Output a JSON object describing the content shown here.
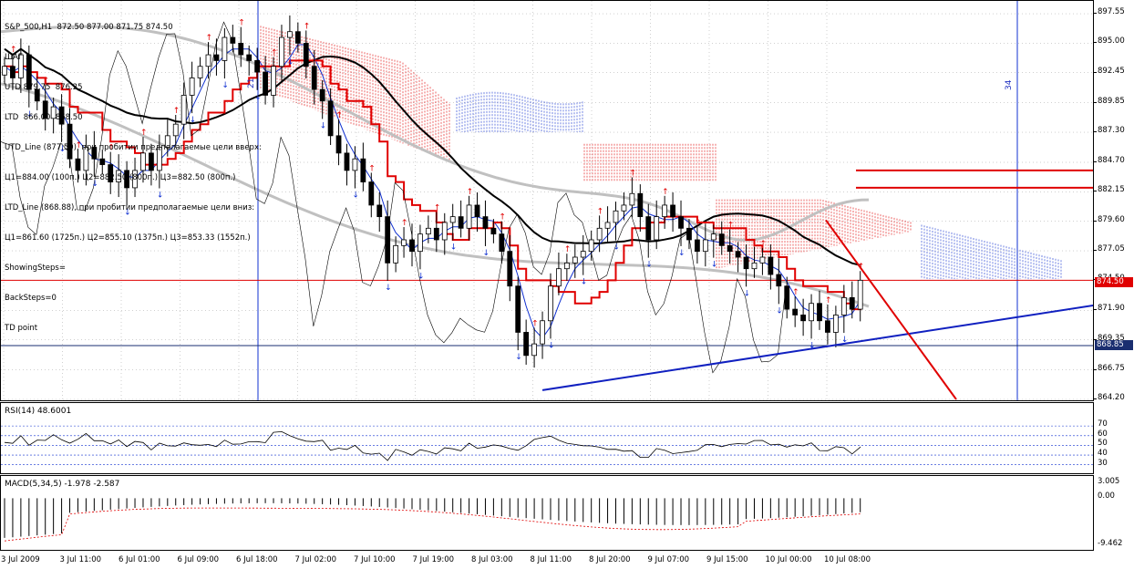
{
  "header": {
    "symbol": "S&P_500,H1",
    "ohlc": "872.50 877.00 871.75 874.50",
    "lines": [
      "ШАГ 1",
      "UTD 879.75  876.25",
      "LTD  866.00  868.50",
      "UTD_Line (877.50), при пробитии предполагаемые цели вверх:",
      "Ц1=884.00 (100п.) Ц2=882.50 (800п.) Ц3=882.50 (800п.)",
      "LTD_Line (868.88), при пробитии предполагаемые цели вниз:",
      "Ц1=861.60 (1725п.) Ц2=855.10 (1375п.) Ц3=853.33 (1552п.)",
      "ShowingSteps=",
      "BackSteps=0",
      "TD point"
    ]
  },
  "colors": {
    "background": "#ffffff",
    "up_candle": "#ffffff",
    "down_candle": "#000000",
    "ma_slow": "#000000",
    "ma_fast": "#1030d0",
    "envelope": "#c0c0c0",
    "kijun": "#e00000",
    "cloud_up": "#e00000",
    "cloud_down": "#1030d0",
    "trendline_support": "#1020c0",
    "trendline_resist": "#e00000",
    "grid": "#a0a0a0"
  },
  "main_axis": {
    "ticks": [
      "897.55",
      "895.00",
      "892.45",
      "889.85",
      "887.30",
      "884.70",
      "882.15",
      "879.60",
      "877.05",
      "874.50",
      "871.90",
      "869.35",
      "866.75",
      "864.20"
    ],
    "current_price": "874.50",
    "level_price": "868.85"
  },
  "vertical_markers": [
    "21",
    "34"
  ],
  "rsi": {
    "label": "RSI(14) 48.6001",
    "ticks": [
      "70",
      "60",
      "50",
      "40",
      "30"
    ]
  },
  "macd": {
    "label": "MACD(5,34,5) -1.978 -2.587",
    "ticks": [
      "3.005",
      "0.00",
      "-9.462"
    ]
  },
  "x_axis": {
    "ticks": [
      "3 Jul 2009",
      "3 Jul 11:00",
      "6 Jul 01:00",
      "6 Jul 09:00",
      "6 Jul 18:00",
      "7 Jul 02:00",
      "7 Jul 10:00",
      "7 Jul 19:00",
      "8 Jul 03:00",
      "8 Jul 11:00",
      "8 Jul 20:00",
      "9 Jul 07:00",
      "9 Jul 15:00",
      "10 Jul 00:00",
      "10 Jul 08:00"
    ]
  },
  "chart_data": {
    "type": "candlestick",
    "symbol": "S&P_500",
    "timeframe": "H1",
    "ylim": [
      864.2,
      898.5
    ],
    "closes": [
      893.0,
      892.0,
      894.0,
      891.0,
      890.0,
      888.5,
      889.5,
      888.0,
      885.0,
      884.0,
      886.0,
      885.0,
      884.5,
      883.0,
      884.0,
      882.5,
      884.0,
      885.5,
      884.0,
      886.0,
      887.0,
      888.0,
      890.5,
      892.0,
      893.0,
      894.0,
      893.5,
      895.5,
      895.0,
      894.0,
      893.5,
      892.5,
      890.5,
      893.0,
      895.5,
      896.0,
      895.0,
      893.0,
      891.0,
      890.0,
      887.0,
      885.5,
      884.0,
      885.0,
      883.0,
      881.0,
      880.0,
      876.0,
      877.5,
      878.0,
      877.0,
      878.5,
      879.0,
      878.0,
      879.5,
      880.0,
      879.0,
      881.0,
      880.0,
      879.0,
      878.5,
      877.0,
      874.0,
      870.0,
      868.0,
      869.0,
      871.0,
      874.0,
      875.5,
      876.0,
      876.5,
      877.0,
      878.0,
      879.0,
      879.5,
      880.5,
      881.0,
      882.0,
      880.0,
      878.0,
      880.0,
      881.0,
      880.0,
      879.0,
      878.0,
      877.0,
      878.0,
      878.5,
      877.5,
      877.0,
      876.5,
      875.5,
      876.0,
      876.5,
      875.0,
      874.0,
      872.0,
      871.5,
      871.0,
      872.5,
      871.0,
      870.0,
      871.5,
      873.0,
      872.0,
      874.5
    ],
    "support_line": [
      {
        "x": "8 Jul 11:00",
        "y": 865.0
      },
      {
        "x": "10 Jul 08:00",
        "y": 868.9
      }
    ],
    "resistance_line": [
      {
        "x": "10 Jul 00:00",
        "y": 879.7
      },
      {
        "x": "10 Jul 08:00",
        "y": 864.2
      }
    ],
    "target_levels": [
      884.0,
      882.5
    ],
    "horizontal_levels": [
      874.5,
      868.85
    ],
    "rsi_levels": [
      70,
      60,
      50,
      40,
      30
    ],
    "rsi_last": 48.6001,
    "macd_last": [
      -1.978,
      -2.587
    ]
  }
}
